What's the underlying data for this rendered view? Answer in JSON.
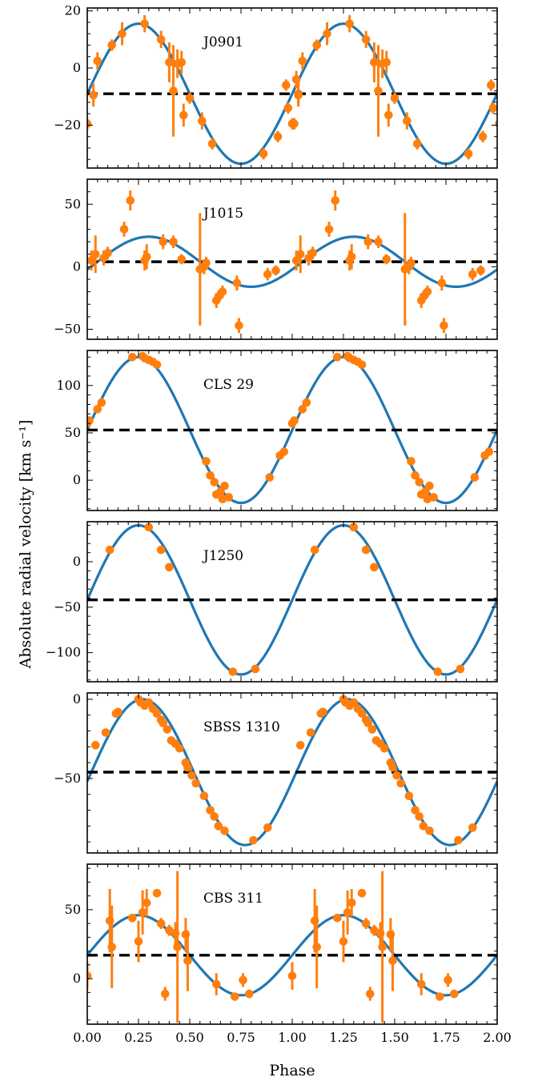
{
  "figure": {
    "ylabel": "Absolute radial velocity [km s⁻¹]",
    "xlabel": "Phase",
    "x_tick_labels": [
      "0.00",
      "0.25",
      "0.50",
      "0.75",
      "1.00",
      "1.25",
      "1.50",
      "1.75",
      "2.00"
    ]
  },
  "colors": {
    "model": "#1f77b4",
    "data": "#ff7f0e",
    "gamma_line": "#000000"
  },
  "chart_data": [
    {
      "type": "scatter",
      "label": "J0901",
      "xlim": [
        0,
        2
      ],
      "ylim": [
        -35,
        21
      ],
      "y_tick_labels": [
        "−20",
        "0",
        "20"
      ],
      "y_ticks": [
        -20,
        0,
        20
      ],
      "gamma": -9,
      "sine": {
        "amplitude": 24.5,
        "phase_of_max": 0.25
      },
      "points": [
        {
          "x": 0.0,
          "y": -19.5,
          "err": 2
        },
        {
          "x": 0.03,
          "y": -9.5,
          "err": 4
        },
        {
          "x": 0.05,
          "y": 2.5,
          "err": 3
        },
        {
          "x": 0.12,
          "y": 8,
          "err": 2
        },
        {
          "x": 0.17,
          "y": 12,
          "err": 4
        },
        {
          "x": 0.28,
          "y": 15.5,
          "err": 3
        },
        {
          "x": 0.36,
          "y": 10,
          "err": 3
        },
        {
          "x": 0.4,
          "y": 2,
          "err": 7
        },
        {
          "x": 0.42,
          "y": -8,
          "err": 16
        },
        {
          "x": 0.44,
          "y": 1.5,
          "err": 5
        },
        {
          "x": 0.46,
          "y": 2,
          "err": 4
        },
        {
          "x": 0.47,
          "y": -16.5,
          "err": 4
        },
        {
          "x": 0.5,
          "y": -10.5,
          "err": 2
        },
        {
          "x": 0.56,
          "y": -18.5,
          "err": 3
        },
        {
          "x": 0.61,
          "y": -26.5,
          "err": 2
        },
        {
          "x": 0.86,
          "y": -30,
          "err": 2
        },
        {
          "x": 0.93,
          "y": -24,
          "err": 2
        },
        {
          "x": 0.97,
          "y": -6,
          "err": 2
        },
        {
          "x": 0.98,
          "y": -14,
          "err": 2
        },
        {
          "x": 1.01,
          "y": -19.5,
          "err": 2
        },
        {
          "x": 1.02,
          "y": -4,
          "err": 3
        },
        {
          "x": 1.03,
          "y": -9,
          "err": 4
        }
      ]
    },
    {
      "type": "scatter",
      "label": "J1015",
      "xlim": [
        0,
        2
      ],
      "ylim": [
        -58,
        70
      ],
      "y_tick_labels": [
        "−50",
        "0",
        "50"
      ],
      "y_ticks": [
        -50,
        0,
        50
      ],
      "gamma": 4,
      "sine": {
        "amplitude": 20,
        "phase_of_max": 0.3
      },
      "points": [
        {
          "x": 0.02,
          "y": 5,
          "err": 8
        },
        {
          "x": 0.04,
          "y": 10,
          "err": 15
        },
        {
          "x": 0.08,
          "y": 7,
          "err": 6
        },
        {
          "x": 0.1,
          "y": 11,
          "err": 5
        },
        {
          "x": 0.18,
          "y": 30,
          "err": 6
        },
        {
          "x": 0.21,
          "y": 53,
          "err": 8
        },
        {
          "x": 0.28,
          "y": 5,
          "err": 8
        },
        {
          "x": 0.29,
          "y": 8,
          "err": 10
        },
        {
          "x": 0.37,
          "y": 20,
          "err": 6
        },
        {
          "x": 0.42,
          "y": 20,
          "err": 5
        },
        {
          "x": 0.46,
          "y": 6,
          "err": 4
        },
        {
          "x": 0.55,
          "y": -2,
          "err": 45
        },
        {
          "x": 0.57,
          "y": 0,
          "err": 6
        },
        {
          "x": 0.58,
          "y": 3,
          "err": 5
        },
        {
          "x": 0.63,
          "y": -27,
          "err": 6
        },
        {
          "x": 0.64,
          "y": -24,
          "err": 5
        },
        {
          "x": 0.66,
          "y": -20,
          "err": 5
        },
        {
          "x": 0.73,
          "y": -13,
          "err": 6
        },
        {
          "x": 0.74,
          "y": -47,
          "err": 6
        },
        {
          "x": 0.88,
          "y": -6,
          "err": 5
        },
        {
          "x": 0.92,
          "y": -3,
          "err": 4
        }
      ]
    },
    {
      "type": "scatter",
      "label": "CLS 29",
      "xlim": [
        0,
        2
      ],
      "ylim": [
        -32,
        137
      ],
      "y_tick_labels": [
        "0",
        "50",
        "100"
      ],
      "y_ticks": [
        0,
        50,
        100
      ],
      "gamma": 53,
      "sine": {
        "amplitude": 77,
        "phase_of_max": 0.25
      },
      "points": [
        {
          "x": 0.0,
          "y": 60,
          "err": 3
        },
        {
          "x": 0.01,
          "y": 63,
          "err": 3
        },
        {
          "x": 0.05,
          "y": 75,
          "err": 3
        },
        {
          "x": 0.07,
          "y": 82,
          "err": 3
        },
        {
          "x": 0.22,
          "y": 130,
          "err": 2
        },
        {
          "x": 0.27,
          "y": 131,
          "err": 2
        },
        {
          "x": 0.28,
          "y": 129,
          "err": 2
        },
        {
          "x": 0.3,
          "y": 127,
          "err": 2
        },
        {
          "x": 0.32,
          "y": 125,
          "err": 2
        },
        {
          "x": 0.34,
          "y": 122,
          "err": 2
        },
        {
          "x": 0.58,
          "y": 20,
          "err": 2
        },
        {
          "x": 0.6,
          "y": 5,
          "err": 2
        },
        {
          "x": 0.62,
          "y": -2,
          "err": 2
        },
        {
          "x": 0.63,
          "y": -15,
          "err": 2
        },
        {
          "x": 0.65,
          "y": -12,
          "err": 2
        },
        {
          "x": 0.66,
          "y": -20,
          "err": 2
        },
        {
          "x": 0.67,
          "y": -6,
          "err": 2
        },
        {
          "x": 0.69,
          "y": -18,
          "err": 2
        },
        {
          "x": 0.89,
          "y": 3,
          "err": 2
        },
        {
          "x": 0.94,
          "y": 26,
          "err": 2
        },
        {
          "x": 0.96,
          "y": 30,
          "err": 2
        }
      ]
    },
    {
      "type": "scatter",
      "label": "J1250",
      "xlim": [
        0,
        2
      ],
      "ylim": [
        -132,
        44
      ],
      "y_tick_labels": [
        "−100",
        "−50",
        "0"
      ],
      "y_ticks": [
        -100,
        -50,
        0
      ],
      "gamma": -42,
      "sine": {
        "amplitude": 82,
        "phase_of_max": 0.25
      },
      "points": [
        {
          "x": 0.11,
          "y": 13,
          "err": 2
        },
        {
          "x": 0.3,
          "y": 38,
          "err": 2
        },
        {
          "x": 0.36,
          "y": 13,
          "err": 2
        },
        {
          "x": 0.4,
          "y": -6,
          "err": 2
        },
        {
          "x": 0.71,
          "y": -121,
          "err": 2
        },
        {
          "x": 0.82,
          "y": -118,
          "err": 2
        }
      ]
    },
    {
      "type": "scatter",
      "label": "SBSS 1310",
      "xlim": [
        0,
        2
      ],
      "ylim": [
        -97,
        4
      ],
      "y_tick_labels": [
        "−50",
        "0"
      ],
      "y_ticks": [
        -50,
        0
      ],
      "gamma": -46,
      "sine": {
        "amplitude": 46,
        "phase_of_max": 0.27
      },
      "points": [
        {
          "x": 0.04,
          "y": -29,
          "err": 1
        },
        {
          "x": 0.09,
          "y": -21,
          "err": 1
        },
        {
          "x": 0.14,
          "y": -9,
          "err": 1
        },
        {
          "x": 0.15,
          "y": -8,
          "err": 1
        },
        {
          "x": 0.25,
          "y": 0,
          "err": 1
        },
        {
          "x": 0.26,
          "y": -2,
          "err": 1
        },
        {
          "x": 0.28,
          "y": -4,
          "err": 1
        },
        {
          "x": 0.3,
          "y": -2,
          "err": 1
        },
        {
          "x": 0.32,
          "y": -6,
          "err": 1
        },
        {
          "x": 0.34,
          "y": -9,
          "err": 1
        },
        {
          "x": 0.36,
          "y": -13,
          "err": 1
        },
        {
          "x": 0.37,
          "y": -15,
          "err": 1
        },
        {
          "x": 0.39,
          "y": -19,
          "err": 1
        },
        {
          "x": 0.41,
          "y": -26,
          "err": 1
        },
        {
          "x": 0.43,
          "y": -28,
          "err": 1
        },
        {
          "x": 0.45,
          "y": -31,
          "err": 1
        },
        {
          "x": 0.48,
          "y": -40,
          "err": 1
        },
        {
          "x": 0.49,
          "y": -43,
          "err": 1
        },
        {
          "x": 0.51,
          "y": -48,
          "err": 1
        },
        {
          "x": 0.53,
          "y": -53,
          "err": 1
        },
        {
          "x": 0.57,
          "y": -61,
          "err": 1
        },
        {
          "x": 0.6,
          "y": -70,
          "err": 1
        },
        {
          "x": 0.62,
          "y": -74,
          "err": 1
        },
        {
          "x": 0.64,
          "y": -80,
          "err": 1
        },
        {
          "x": 0.67,
          "y": -83,
          "err": 1
        },
        {
          "x": 0.81,
          "y": -89,
          "err": 1
        },
        {
          "x": 0.88,
          "y": -81,
          "err": 1
        }
      ]
    },
    {
      "type": "scatter",
      "label": "CBS 311",
      "xlim": [
        0,
        2
      ],
      "ylim": [
        -33,
        83
      ],
      "y_tick_labels": [
        "0",
        "50"
      ],
      "y_ticks": [
        0,
        50
      ],
      "gamma": 17,
      "sine": {
        "amplitude": 29,
        "phase_of_max": 0.25
      },
      "points": [
        {
          "x": 0.0,
          "y": 2,
          "err": 10
        },
        {
          "x": 0.11,
          "y": 42,
          "err": 23
        },
        {
          "x": 0.12,
          "y": 23,
          "err": 30
        },
        {
          "x": 0.22,
          "y": 44,
          "err": 3
        },
        {
          "x": 0.25,
          "y": 27,
          "err": 15
        },
        {
          "x": 0.27,
          "y": 48,
          "err": 16
        },
        {
          "x": 0.29,
          "y": 55,
          "err": 10
        },
        {
          "x": 0.34,
          "y": 62,
          "err": 3
        },
        {
          "x": 0.36,
          "y": 40,
          "err": 4
        },
        {
          "x": 0.38,
          "y": -11,
          "err": 5
        },
        {
          "x": 0.4,
          "y": 35,
          "err": 4
        },
        {
          "x": 0.43,
          "y": 33,
          "err": 8
        },
        {
          "x": 0.44,
          "y": 23,
          "err": 55
        },
        {
          "x": 0.48,
          "y": 32,
          "err": 12
        },
        {
          "x": 0.49,
          "y": 13,
          "err": 22
        },
        {
          "x": 0.63,
          "y": -4,
          "err": 8
        },
        {
          "x": 0.72,
          "y": -13,
          "err": 2
        },
        {
          "x": 0.76,
          "y": -1,
          "err": 5
        },
        {
          "x": 0.79,
          "y": -11,
          "err": 3
        }
      ]
    }
  ]
}
